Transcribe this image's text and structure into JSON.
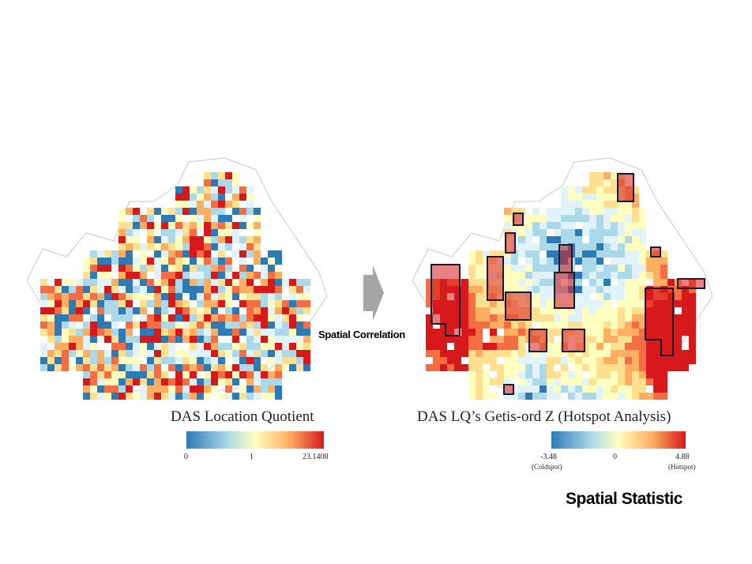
{
  "left_map": {
    "title": "DAS Location Quotient",
    "legend": {
      "min_label": "0",
      "mid_label": "1",
      "max_label": "23.1408"
    }
  },
  "right_map": {
    "title": "DAS LQ’s Getis-ord Z (Hotspot Analysis)",
    "legend": {
      "min_label": "-3.48",
      "min_sub": "(Coldspot)",
      "mid_label": "0",
      "max_label": "4.88",
      "max_sub": "(Hotspot)"
    }
  },
  "arrow_label": "Spatial Correlation",
  "footer_label": "Spatial Statistic",
  "colors": {
    "low": "#2c7bb6",
    "low_mid": "#abd9e9",
    "mid": "#ffffbf",
    "high_mid": "#fdae61",
    "high": "#d7191c",
    "hotspot_outline": "#1a1a2e",
    "arrow": "#a6a6a6"
  }
}
